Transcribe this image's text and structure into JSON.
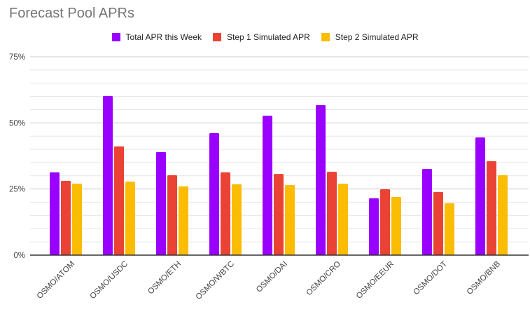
{
  "chart_data": {
    "type": "bar",
    "title": "Forecast Pool APRs",
    "xlabel": "",
    "ylabel": "",
    "ylim": [
      0,
      75
    ],
    "yticks": [
      0,
      25,
      50,
      75
    ],
    "ytick_labels": [
      "0%",
      "25%",
      "50%",
      "75%"
    ],
    "minor_grid_step": 5,
    "grid": true,
    "legend_position": "top",
    "categories": [
      "OSMO/ATOM",
      "OSMO/USDC",
      "OSMO/ETH",
      "OSMO/WBTC",
      "OSMO/DAI",
      "OSMO/CRO",
      "OSMO/EEUR",
      "OSMO/DOT",
      "OSMO/BNB"
    ],
    "series": [
      {
        "name": "Total APR this Week",
        "color": "#9900ff",
        "values": [
          31.3,
          60.2,
          39.0,
          46.1,
          52.7,
          56.7,
          21.5,
          32.6,
          44.5
        ]
      },
      {
        "name": "Step 1 Simulated APR",
        "color": "#ea4335",
        "values": [
          28.1,
          41.1,
          30.2,
          31.3,
          30.7,
          31.5,
          24.9,
          23.9,
          35.5
        ]
      },
      {
        "name": "Step 2 Simulated APR",
        "color": "#fbbc04",
        "values": [
          27.0,
          27.8,
          26.0,
          26.8,
          26.5,
          27.0,
          22.0,
          19.6,
          30.2
        ]
      }
    ]
  }
}
